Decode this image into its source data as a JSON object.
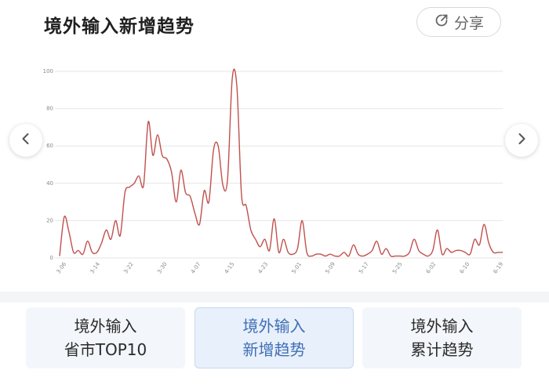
{
  "header": {
    "title": "境外输入新增趋势",
    "share_label": "分享"
  },
  "nav": {
    "prev_icon": "chevron-left-icon",
    "next_icon": "chevron-right-icon"
  },
  "colors": {
    "line": "#c0504d",
    "grid": "#e6e6e6",
    "active_tab_text": "#3f6fb5"
  },
  "chart_data": {
    "type": "line",
    "title": "",
    "xlabel": "",
    "ylabel": "",
    "ylim": [
      0,
      100
    ],
    "yticks": [
      "0",
      "20",
      "40",
      "60",
      "80",
      "100"
    ],
    "x_tick_labels": [
      "3-06",
      "3-14",
      "3-22",
      "3-30",
      "4-07",
      "4-15",
      "4-23",
      "5-01",
      "5-09",
      "5-17",
      "5-25",
      "6-02",
      "6-10",
      "6-19"
    ],
    "grid": true,
    "series": [
      {
        "values": [
          1,
          22,
          14,
          3,
          4,
          2,
          9,
          3,
          3,
          8,
          15,
          10,
          20,
          12,
          35,
          38,
          40,
          44,
          39,
          73,
          55,
          66,
          55,
          53,
          46,
          30,
          47,
          35,
          33,
          24,
          18,
          36,
          30,
          58,
          60,
          39,
          42,
          96,
          92,
          34,
          28,
          15,
          10,
          6,
          10,
          4,
          21,
          3,
          10,
          3,
          2,
          5,
          20,
          3,
          1,
          2,
          2,
          1,
          2,
          1,
          1,
          3,
          1,
          7,
          2,
          1,
          2,
          4,
          9,
          2,
          5,
          1,
          1,
          1,
          1,
          3,
          10,
          4,
          2,
          1,
          4,
          15,
          2,
          5,
          3,
          4,
          4,
          3,
          2,
          10,
          7,
          18,
          8,
          3,
          3,
          3
        ]
      }
    ]
  },
  "tabs": [
    {
      "line1": "境外输入",
      "line2": "省市TOP10",
      "active": false
    },
    {
      "line1": "境外输入",
      "line2": "新增趋势",
      "active": true
    },
    {
      "line1": "境外输入",
      "line2": "累计趋势",
      "active": false
    }
  ]
}
